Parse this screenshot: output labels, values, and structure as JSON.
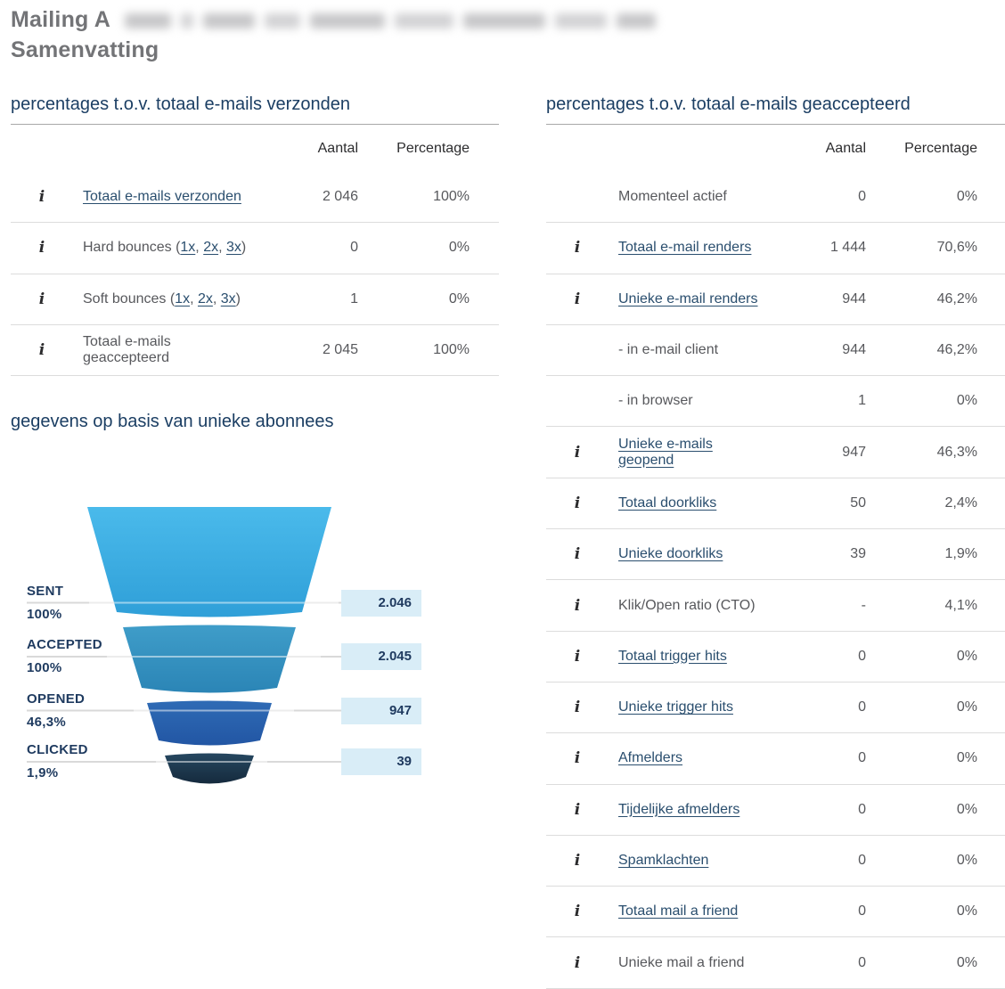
{
  "title": {
    "line1": "Mailing A",
    "line2": "Samenvatting"
  },
  "left_section": {
    "heading": "percentages t.o.v. totaal e-mails verzonden",
    "col_aantal": "Aantal",
    "col_percentage": "Percentage",
    "rows": [
      {
        "info": true,
        "label": "Totaal e-mails verzonden",
        "link": true,
        "aantal": "2 046",
        "percentage": "100%"
      },
      {
        "info": true,
        "label": "Hard bounces",
        "link": false,
        "bounce_links": [
          "1x",
          "2x",
          "3x"
        ],
        "aantal": "0",
        "percentage": "0%"
      },
      {
        "info": true,
        "label": "Soft bounces",
        "link": false,
        "bounce_links": [
          "1x",
          "2x",
          "3x"
        ],
        "aantal": "1",
        "percentage": "0%"
      },
      {
        "info": true,
        "label": "Totaal e-mails geaccepteerd",
        "link": false,
        "aantal": "2 045",
        "percentage": "100%"
      }
    ]
  },
  "funnel_section": {
    "heading": "gegevens op basis van unieke abonnees",
    "stages": [
      {
        "label": "SENT",
        "percent": "100%",
        "value": "2.046"
      },
      {
        "label": "ACCEPTED",
        "percent": "100%",
        "value": "2.045"
      },
      {
        "label": "OPENED",
        "percent": "46,3%",
        "value": "947"
      },
      {
        "label": "CLICKED",
        "percent": "1,9%",
        "value": "39"
      }
    ]
  },
  "right_section": {
    "heading": "percentages t.o.v. totaal e-mails geaccepteerd",
    "col_aantal": "Aantal",
    "col_percentage": "Percentage",
    "rows": [
      {
        "info": false,
        "label": "Momenteel actief",
        "link": false,
        "aantal": "0",
        "percentage": "0%"
      },
      {
        "info": true,
        "label": "Totaal e-mail renders",
        "link": true,
        "aantal": "1 444",
        "percentage": "70,6%"
      },
      {
        "info": true,
        "label": "Unieke e-mail renders",
        "link": true,
        "aantal": "944",
        "percentage": "46,2%"
      },
      {
        "info": false,
        "label": "- in e-mail client",
        "link": false,
        "aantal": "944",
        "percentage": "46,2%"
      },
      {
        "info": false,
        "label": "- in browser",
        "link": false,
        "aantal": "1",
        "percentage": "0%"
      },
      {
        "info": true,
        "label": "Unieke e-mails geopend",
        "link": true,
        "aantal": "947",
        "percentage": "46,3%"
      },
      {
        "info": true,
        "label": "Totaal doorkliks",
        "link": true,
        "aantal": "50",
        "percentage": "2,4%"
      },
      {
        "info": true,
        "label": "Unieke doorkliks",
        "link": true,
        "aantal": "39",
        "percentage": "1,9%"
      },
      {
        "info": true,
        "label": "Klik/Open ratio (CTO)",
        "link": false,
        "aantal": "-",
        "percentage": "4,1%"
      },
      {
        "info": true,
        "label": "Totaal trigger hits",
        "link": true,
        "aantal": "0",
        "percentage": "0%"
      },
      {
        "info": true,
        "label": "Unieke trigger hits",
        "link": true,
        "aantal": "0",
        "percentage": "0%"
      },
      {
        "info": true,
        "label": "Afmelders",
        "link": true,
        "aantal": "0",
        "percentage": "0%"
      },
      {
        "info": true,
        "label": "Tijdelijke afmelders",
        "link": true,
        "aantal": "0",
        "percentage": "0%"
      },
      {
        "info": true,
        "label": "Spamklachten",
        "link": true,
        "aantal": "0",
        "percentage": "0%"
      },
      {
        "info": true,
        "label": "Totaal mail a friend",
        "link": true,
        "aantal": "0",
        "percentage": "0%"
      },
      {
        "info": true,
        "label": "Unieke mail a friend",
        "link": false,
        "aantal": "0",
        "percentage": "0%"
      }
    ]
  },
  "chart_data": {
    "type": "funnel",
    "title": "gegevens op basis van unieke abonnees",
    "categories": [
      "SENT",
      "ACCEPTED",
      "OPENED",
      "CLICKED"
    ],
    "values": [
      2046,
      2045,
      947,
      39
    ],
    "percent_labels": [
      "100%",
      "100%",
      "46,3%",
      "1,9%"
    ],
    "value_labels": [
      "2.046",
      "2.045",
      "947",
      "39"
    ],
    "colors": [
      "#41b2e5",
      "#3392c1",
      "#2a62af",
      "#20394f"
    ],
    "legend_position": "left",
    "grid": true
  },
  "colors": {
    "section_heading": "#1b3e63",
    "title_gray": "#737477",
    "row_text": "#57585c",
    "link": "#2a4e6e",
    "table_header_text": "#2c2c2e",
    "separator": "#dcdcdc",
    "heading_rule": "#a8a8a8",
    "gridline": "#d9d9d9",
    "value_box_bg": "#d9edf7",
    "value_box_text": "#1f3a5f",
    "funnel_label": "#1e3a5f"
  }
}
